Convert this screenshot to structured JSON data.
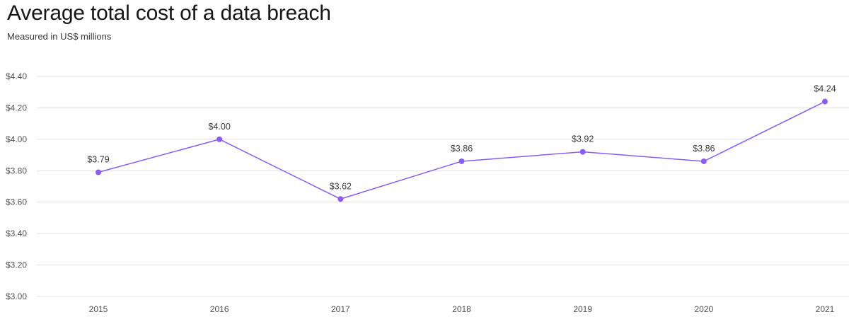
{
  "chart_data": {
    "type": "line",
    "title": "Average total cost of a data breach",
    "subtitle": "Measured in US$ millions",
    "xlabel": "",
    "ylabel": "",
    "categories": [
      "2015",
      "2016",
      "2017",
      "2018",
      "2019",
      "2020",
      "2021"
    ],
    "series": [
      {
        "values": [
          3.79,
          4.0,
          3.62,
          3.86,
          3.92,
          3.86,
          4.24
        ],
        "labels": [
          "$3.79",
          "$4.00",
          "$3.62",
          "$3.86",
          "$3.92",
          "$3.86",
          "$4.24"
        ]
      }
    ],
    "ylim": [
      3.0,
      4.4
    ],
    "yticks": [
      3.0,
      3.2,
      3.4,
      3.6,
      3.8,
      4.0,
      4.2,
      4.4
    ],
    "ytick_labels": [
      "$3.00",
      "$3.20",
      "$3.40",
      "$3.60",
      "$3.80",
      "$4.00",
      "$4.20",
      "$4.40"
    ],
    "grid": true,
    "colors": {
      "line": "#8a5cf5",
      "grid": "#e0e0e0"
    }
  }
}
